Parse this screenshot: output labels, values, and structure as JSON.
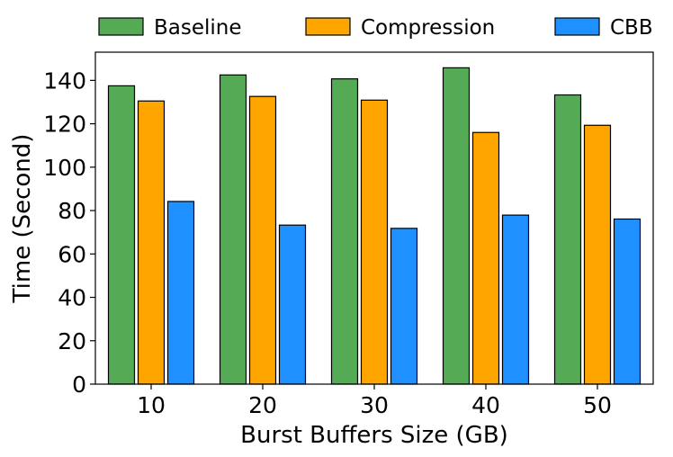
{
  "chart_data": {
    "type": "bar",
    "categories": [
      "10",
      "20",
      "30",
      "40",
      "50"
    ],
    "series": [
      {
        "name": "Baseline",
        "color": "#55aa55",
        "values": [
          137.5,
          142.5,
          140.7,
          145.8,
          133.3
        ]
      },
      {
        "name": "Compression",
        "color": "#ffa500",
        "values": [
          130.5,
          132.6,
          130.9,
          116.0,
          119.3
        ]
      },
      {
        "name": "CBB",
        "color": "#1e90ff",
        "values": [
          84.2,
          73.3,
          71.8,
          77.9,
          76.1
        ]
      }
    ],
    "xlabel": "Burst Buffers Size (GB)",
    "ylabel": "Time (Second)",
    "ylim": [
      0,
      153
    ],
    "yticks": [
      0,
      20,
      40,
      60,
      80,
      100,
      120,
      140
    ],
    "legend_position": "top, above plot",
    "grid": false
  }
}
